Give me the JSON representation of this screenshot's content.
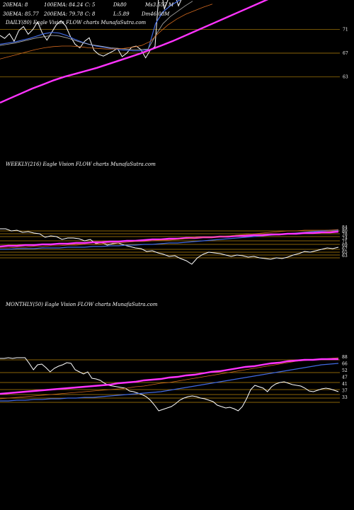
{
  "app": {
    "watermark": "Eagle Vision FLOW charts MunafaSutra.com"
  },
  "colors": {
    "background": "#000000",
    "price": "#ffffff",
    "ema_short": "#4169e1",
    "ema_mid": "#b0b0b0",
    "ema_long": "#d2691e",
    "ema_200": "#ff33ff",
    "level_line": "#b8860b"
  },
  "chart_data": [
    {
      "type": "line",
      "title": "DAILY(80) Eagle Vision FLOW charts MunafaSutra.com",
      "legend": {
        "row1": [
          "20EMA: 8",
          "100EMA: 84.24",
          "C: 5",
          "Dk80",
          "Ms3.557 M"
        ],
        "row2": [
          "30EMA: 85.77",
          "200EMA: 79.78",
          "C: 8",
          "L:5.89",
          "Dm46.08M"
        ]
      },
      "y_ticks": [
        71,
        67,
        63
      ],
      "ylim": [
        58,
        76
      ],
      "series": [
        {
          "name": "Price",
          "color": "#ffffff",
          "values": [
            70.0,
            69.5,
            70.3,
            69.0,
            70.8,
            71.5,
            70.2,
            71.0,
            72.3,
            70.4,
            69.2,
            70.5,
            71.8,
            72.5,
            71.6,
            69.8,
            68.5,
            67.9,
            69.0,
            69.6,
            67.5,
            66.8,
            66.5,
            66.9,
            67.3,
            67.8,
            66.4,
            67.0,
            68.0,
            68.2,
            67.6,
            66.2,
            67.5,
            68.1,
            79.0,
            74.5,
            76.5,
            77.5,
            75.0,
            76.8,
            78.5,
            77.0
          ]
        },
        {
          "name": "Short EMA",
          "color": "#4169e1",
          "values": [
            68.5,
            68.7,
            68.9,
            69.2,
            69.5,
            69.9,
            70.3,
            70.5,
            70.4,
            70.0,
            69.4,
            68.9,
            68.5,
            68.2,
            68.0,
            67.8,
            67.6,
            67.5,
            67.4,
            67.4,
            67.6,
            72.0,
            74.0,
            75.0,
            75.8,
            76.5,
            77.0
          ]
        },
        {
          "name": "Mid EMA",
          "color": "#b0b0b0",
          "values": [
            68.3,
            68.5,
            68.7,
            69.0,
            69.3,
            69.6,
            69.8,
            70.0,
            69.9,
            69.6,
            69.2,
            68.8,
            68.5,
            68.3,
            68.1,
            67.9,
            67.8,
            67.7,
            67.6,
            67.6,
            67.7,
            70.0,
            72.0,
            73.2,
            74.1,
            75.0,
            75.8
          ]
        },
        {
          "name": "Long EMA",
          "color": "#d2691e",
          "values": [
            66.0,
            66.4,
            66.8,
            67.2,
            67.6,
            67.9,
            68.1,
            68.2,
            68.2,
            68.1,
            67.9,
            67.8,
            67.7,
            67.7,
            67.8,
            68.0,
            68.3,
            69.0,
            70.5,
            71.8,
            72.8,
            73.6,
            74.2,
            74.8,
            75.3
          ]
        },
        {
          "name": "200 EMA",
          "color": "#ff33ff",
          "values": [
            58.6,
            59.4,
            60.2,
            61.0,
            61.7,
            62.4,
            63.0,
            63.5,
            64.0,
            64.5,
            65.1,
            65.7,
            66.3,
            66.9,
            67.6,
            68.3,
            69.0,
            69.8,
            70.6,
            71.4,
            72.2,
            73.0,
            73.8,
            74.6,
            75.4,
            76.2
          ]
        }
      ]
    },
    {
      "type": "line",
      "title": "WEEKLY(216) Eagle Vision FLOW charts MunafaSutra.com",
      "y_ticks": [
        84,
        80,
        78,
        74,
        71,
        69,
        67,
        65,
        63
      ],
      "series": [
        {
          "name": "Price",
          "color": "#ffffff",
          "values": [
            349,
            351,
            350,
            352,
            354,
            356,
            355,
            358,
            360,
            363,
            365,
            364,
            366,
            365,
            364,
            362,
            363,
            361,
            360,
            362,
            360,
            358,
            357,
            356,
            359,
            364,
            373,
            368,
            365,
            361,
            362,
            359,
            357,
            354,
            355,
            351,
            350,
            348,
            346,
            343,
            344,
            346,
            342,
            344,
            338,
            340,
            337,
            336,
            336,
            338,
            334,
            333,
            335,
            330,
            329,
            327,
            328,
            325,
            326,
            323,
            323
          ]
        },
        {
          "name": "Short EMA",
          "color": "#4169e1",
          "values": [
            352,
            352,
            351,
            351,
            351,
            350,
            350,
            350,
            349,
            349,
            349,
            348,
            348,
            347,
            347,
            346,
            346,
            345,
            345,
            344,
            343,
            343,
            342,
            341,
            340,
            339,
            338,
            337,
            336,
            335,
            334,
            333,
            332,
            331,
            330,
            329,
            328,
            327,
            326,
            325,
            325
          ]
        },
        {
          "name": "200 EMA",
          "color": "#ff33ff",
          "values": [
            348,
            347,
            347,
            346,
            346,
            345,
            345,
            344,
            344,
            343,
            343,
            342,
            342,
            341,
            341,
            340,
            340,
            339,
            338,
            338,
            337,
            337,
            336,
            336,
            335,
            335,
            334,
            334,
            333,
            333,
            332,
            332,
            331,
            331,
            330,
            330,
            329,
            329,
            328,
            328,
            327
          ]
        },
        {
          "name": "Long EMA",
          "color": "#d2691e",
          "values": [
            350,
            350,
            349,
            349,
            348,
            348,
            347,
            347,
            346,
            346,
            345,
            345,
            344,
            343,
            343,
            342,
            341,
            341,
            340,
            339,
            339,
            338,
            337,
            336,
            335,
            335,
            334,
            333,
            332,
            331,
            330,
            329,
            328,
            327,
            326,
            326,
            325,
            325,
            325,
            325,
            324
          ]
        }
      ],
      "level_lines": [
        326,
        330,
        334,
        340,
        345,
        352,
        356,
        360,
        364
      ]
    },
    {
      "type": "line",
      "title": "MONTHLY(50) Eagle Vision FLOW charts MunafaSutra.com",
      "y_ticks": [
        88,
        66,
        52,
        47,
        41,
        37,
        33
      ],
      "series": [
        {
          "name": "Price",
          "color": "#ffffff",
          "values": [
            553,
            551,
            549,
            548,
            549,
            551,
            553,
            552,
            548,
            545,
            544,
            543,
            541,
            539,
            540,
            542,
            546,
            553,
            548,
            546,
            544,
            550,
            563,
            574,
            580,
            577,
            575,
            576,
            574,
            572,
            567,
            565,
            563,
            562,
            560,
            559,
            560,
            562,
            565,
            570,
            574,
            576,
            578,
            580,
            572,
            565,
            560,
            557,
            555,
            553,
            552,
            548,
            547,
            546,
            545,
            544,
            541,
            537,
            535,
            534,
            525,
            528,
            525,
            522,
            513,
            512,
            515,
            517,
            520,
            525,
            519,
            514,
            515,
            522,
            513,
            505,
            505,
            505,
            506,
            505,
            506,
            506
          ]
        },
        {
          "name": "Short EMA",
          "color": "#4169e1",
          "values": [
            566,
            566,
            565,
            565,
            564,
            564,
            563,
            563,
            562,
            562,
            561,
            561,
            560,
            559,
            558,
            557,
            556,
            555,
            554,
            553,
            551,
            549,
            547,
            545,
            543,
            541,
            539,
            537,
            535,
            533,
            531,
            529,
            527,
            525,
            523,
            521,
            519,
            517,
            515,
            514,
            513
          ]
        },
        {
          "name": "Long EMA",
          "color": "#d2691e",
          "values": [
            563,
            562,
            561,
            560,
            559,
            558,
            557,
            556,
            555,
            554,
            553,
            552,
            551,
            550,
            549,
            548,
            546,
            545,
            543,
            541,
            540,
            538,
            536,
            534,
            532,
            530,
            528,
            526,
            524,
            522,
            520,
            518,
            516,
            514,
            512,
            510,
            509,
            508,
            507,
            506,
            505
          ]
        },
        {
          "name": "200 EMA",
          "color": "#ff33ff",
          "values": [
            556,
            555,
            554,
            553,
            552,
            551,
            550,
            549,
            548,
            547,
            546,
            545,
            544,
            543,
            541,
            540,
            539,
            537,
            536,
            535,
            533,
            532,
            530,
            529,
            527,
            525,
            524,
            522,
            520,
            518,
            517,
            515,
            513,
            512,
            510,
            509,
            508,
            508,
            507,
            507,
            507
          ]
        }
      ],
      "level_lines": [
        508,
        526,
        540,
        550,
        557,
        562,
        568
      ]
    }
  ]
}
